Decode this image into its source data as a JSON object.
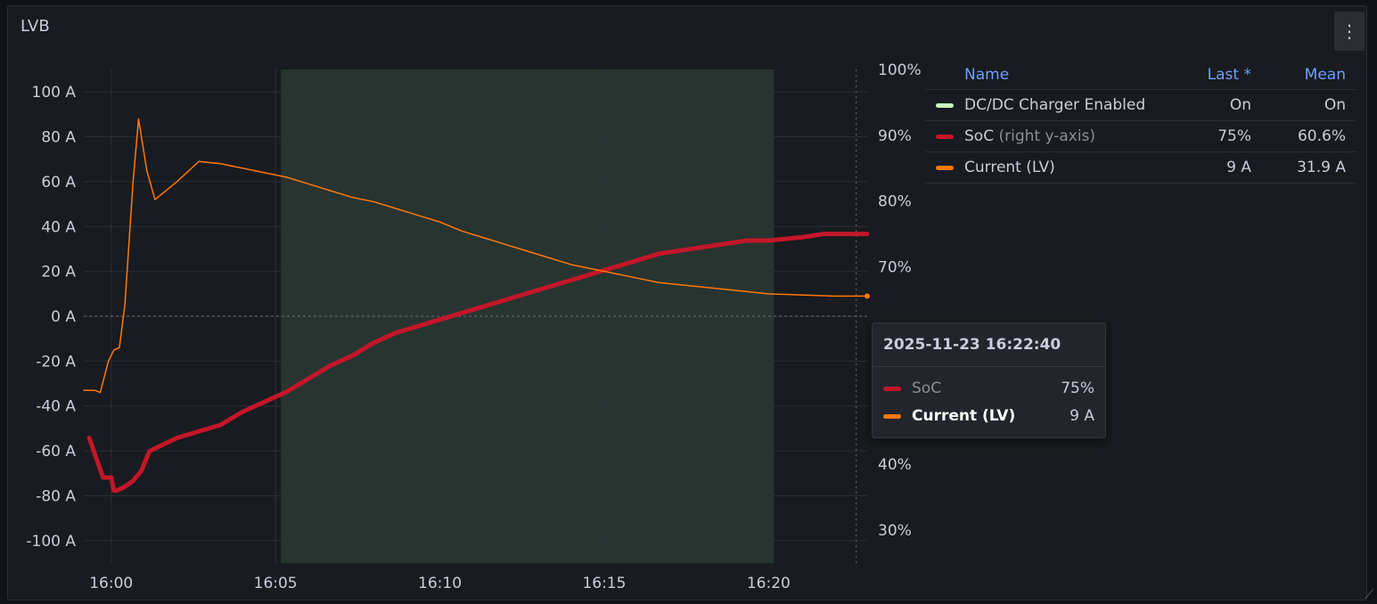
{
  "panel": {
    "title": "LVB",
    "menu_icon": "kebab-menu-icon"
  },
  "colors": {
    "soc": "#c4162a",
    "current": "#ff780a",
    "dcdc": "#c8f2c2",
    "grid": "#2c2f36",
    "region": "#283430",
    "dashed": "#6e6e77"
  },
  "chart_data": {
    "type": "line",
    "x_range": [
      "15:59:10",
      "16:23:00"
    ],
    "x_ticks": [
      "16:00",
      "16:05",
      "16:10",
      "16:15",
      "16:20"
    ],
    "y_left": {
      "label": "",
      "unit": "A",
      "range": [
        -110,
        110
      ],
      "ticks": [
        "100 A",
        "80 A",
        "60 A",
        "40 A",
        "20 A",
        "0 A",
        "-20 A",
        "-40 A",
        "-60 A",
        "-80 A",
        "-100 A"
      ]
    },
    "y_right": {
      "label": "",
      "unit": "%",
      "range": [
        25,
        100
      ],
      "ticks": [
        "100%",
        "90%",
        "80%",
        "70%",
        "60%",
        "50%",
        "40%",
        "30%"
      ]
    },
    "highlight_region": [
      "16:05:10",
      "16:20:10"
    ],
    "hover_time": "16:22:40",
    "series": [
      {
        "name": "SoC",
        "axis": "right",
        "points": [
          [
            "15:59:20",
            44
          ],
          [
            "15:59:45",
            38
          ],
          [
            "16:00:00",
            38
          ],
          [
            "16:00:05",
            36
          ],
          [
            "16:00:10",
            36
          ],
          [
            "16:00:25",
            36.6
          ],
          [
            "16:00:40",
            37.5
          ],
          [
            "16:00:55",
            39
          ],
          [
            "16:01:10",
            42
          ],
          [
            "16:02:00",
            44
          ],
          [
            "16:02:40",
            45
          ],
          [
            "16:03:20",
            46
          ],
          [
            "16:04:00",
            48
          ],
          [
            "16:04:40",
            49.5
          ],
          [
            "16:05:20",
            51
          ],
          [
            "16:06:00",
            53
          ],
          [
            "16:06:40",
            55
          ],
          [
            "16:07:20",
            56.5
          ],
          [
            "16:08:00",
            58.5
          ],
          [
            "16:08:40",
            60
          ],
          [
            "16:09:20",
            61
          ],
          [
            "16:10:00",
            62
          ],
          [
            "16:10:40",
            63
          ],
          [
            "16:11:20",
            64
          ],
          [
            "16:12:00",
            65
          ],
          [
            "16:12:40",
            66
          ],
          [
            "16:13:20",
            67
          ],
          [
            "16:14:00",
            68
          ],
          [
            "16:14:40",
            69
          ],
          [
            "16:15:20",
            70
          ],
          [
            "16:16:00",
            71
          ],
          [
            "16:16:40",
            72
          ],
          [
            "16:17:20",
            72.5
          ],
          [
            "16:18:00",
            73
          ],
          [
            "16:18:40",
            73.5
          ],
          [
            "16:19:20",
            74
          ],
          [
            "16:20:00",
            74
          ],
          [
            "16:21:00",
            74.5
          ],
          [
            "16:21:40",
            75
          ],
          [
            "16:23:00",
            75
          ]
        ]
      },
      {
        "name": "Current (LV)",
        "axis": "left",
        "points": [
          [
            "15:59:10",
            -33
          ],
          [
            "15:59:30",
            -33
          ],
          [
            "15:59:40",
            -34
          ],
          [
            "15:59:55",
            -20
          ],
          [
            "16:00:05",
            -15
          ],
          [
            "16:00:15",
            -14
          ],
          [
            "16:00:25",
            5
          ],
          [
            "16:00:40",
            60
          ],
          [
            "16:00:50",
            88
          ],
          [
            "16:01:05",
            65
          ],
          [
            "16:01:20",
            52
          ],
          [
            "16:02:00",
            60
          ],
          [
            "16:02:40",
            69
          ],
          [
            "16:03:20",
            68
          ],
          [
            "16:04:00",
            66
          ],
          [
            "16:04:40",
            64
          ],
          [
            "16:05:20",
            62
          ],
          [
            "16:06:00",
            59
          ],
          [
            "16:06:40",
            56
          ],
          [
            "16:07:20",
            53
          ],
          [
            "16:08:00",
            51
          ],
          [
            "16:08:40",
            48
          ],
          [
            "16:09:20",
            45
          ],
          [
            "16:10:00",
            42
          ],
          [
            "16:10:40",
            38
          ],
          [
            "16:11:20",
            35
          ],
          [
            "16:12:00",
            32
          ],
          [
            "16:12:40",
            29
          ],
          [
            "16:13:20",
            26
          ],
          [
            "16:14:00",
            23
          ],
          [
            "16:14:40",
            21
          ],
          [
            "16:15:20",
            19
          ],
          [
            "16:16:00",
            17
          ],
          [
            "16:16:40",
            15
          ],
          [
            "16:17:20",
            14
          ],
          [
            "16:18:00",
            13
          ],
          [
            "16:18:40",
            12
          ],
          [
            "16:19:20",
            11
          ],
          [
            "16:20:00",
            10
          ],
          [
            "16:21:00",
            9.5
          ],
          [
            "16:22:00",
            9
          ],
          [
            "16:23:00",
            9
          ]
        ]
      }
    ]
  },
  "legend": {
    "headers": {
      "name": "Name",
      "last": "Last *",
      "mean": "Mean"
    },
    "rows": [
      {
        "name": "DC/DC Charger Enabled",
        "suffix": "",
        "last": "On",
        "mean": "On",
        "color": "#c8f2c2"
      },
      {
        "name": "SoC",
        "suffix": "(right y-axis)",
        "last": "75%",
        "mean": "60.6%",
        "color": "#c4162a"
      },
      {
        "name": "Current (LV)",
        "suffix": "",
        "last": "9 A",
        "mean": "31.9 A",
        "color": "#ff780a"
      }
    ]
  },
  "tooltip": {
    "time": "2025-11-23 16:22:40",
    "rows": [
      {
        "name": "SoC",
        "value": "75%",
        "color": "#c4162a"
      },
      {
        "name": "Current (LV)",
        "value": "9 A",
        "color": "#ff780a"
      }
    ]
  }
}
